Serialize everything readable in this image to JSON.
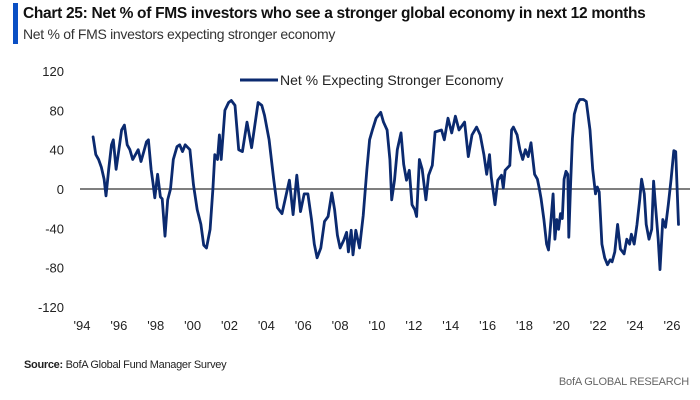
{
  "header": {
    "title": "Chart 25: Net % of FMS investors who see a stronger global economy in next 12 months",
    "subtitle": "Net % of FMS investors expecting stronger economy",
    "accent_color": "#0a4fc4"
  },
  "footer": {
    "source_label": "Source:",
    "source_text": "BofA Global Fund Manager Survey",
    "brand": "BofA GLOBAL RESEARCH"
  },
  "chart_data": {
    "type": "line",
    "title": "Chart 25: Net % of FMS investors who see a stronger global economy in next 12 months",
    "subtitle": "Net % of FMS investors expecting stronger economy",
    "xlabel": "",
    "ylabel": "",
    "xlim": [
      1994,
      2026
    ],
    "ylim": [
      -120,
      120
    ],
    "yticks": [
      120,
      80,
      40,
      0,
      -40,
      -80,
      -120
    ],
    "ytick_labels": [
      "120",
      "80",
      "40",
      "0",
      "-40",
      "-80",
      "-120"
    ],
    "xticks": [
      1994,
      1996,
      1998,
      2000,
      2002,
      2004,
      2006,
      2008,
      2010,
      2012,
      2014,
      2016,
      2018,
      2020,
      2022,
      2024,
      2026
    ],
    "xtick_labels": [
      "'94",
      "'96",
      "'98",
      "'00",
      "'02",
      "'04",
      "'06",
      "'08",
      "'10",
      "'12",
      "'14",
      "'16",
      "'18",
      "'20",
      "'22",
      "'24",
      "'26"
    ],
    "grid": false,
    "zero_line": true,
    "legend": {
      "position": "top-center",
      "entries": [
        "Net % Expecting Stronger Economy"
      ]
    },
    "series": [
      {
        "name": "Net % Expecting Stronger Economy",
        "color": "#0b2a6f",
        "points": [
          [
            1994.6,
            53
          ],
          [
            1994.75,
            35
          ],
          [
            1994.9,
            30
          ],
          [
            1995.05,
            22
          ],
          [
            1995.2,
            10
          ],
          [
            1995.3,
            -7
          ],
          [
            1995.45,
            20
          ],
          [
            1995.6,
            45
          ],
          [
            1995.7,
            50
          ],
          [
            1995.85,
            20
          ],
          [
            1996.0,
            40
          ],
          [
            1996.15,
            60
          ],
          [
            1996.3,
            65
          ],
          [
            1996.45,
            45
          ],
          [
            1996.6,
            40
          ],
          [
            1996.75,
            30
          ],
          [
            1996.9,
            35
          ],
          [
            1997.05,
            40
          ],
          [
            1997.2,
            28
          ],
          [
            1997.35,
            38
          ],
          [
            1997.5,
            48
          ],
          [
            1997.6,
            50
          ],
          [
            1997.75,
            20
          ],
          [
            1997.85,
            6
          ],
          [
            1997.95,
            -9
          ],
          [
            1998.1,
            15
          ],
          [
            1998.25,
            -8
          ],
          [
            1998.35,
            -10
          ],
          [
            1998.5,
            -48
          ],
          [
            1998.65,
            -11
          ],
          [
            1998.8,
            0
          ],
          [
            1998.95,
            30
          ],
          [
            1999.15,
            43
          ],
          [
            1999.3,
            45
          ],
          [
            1999.45,
            38
          ],
          [
            1999.6,
            45
          ],
          [
            1999.85,
            40
          ],
          [
            2000.05,
            4
          ],
          [
            2000.25,
            -21
          ],
          [
            2000.45,
            -36
          ],
          [
            2000.6,
            -57
          ],
          [
            2000.75,
            -60
          ],
          [
            2000.95,
            -41
          ],
          [
            2001.1,
            0
          ],
          [
            2001.2,
            35
          ],
          [
            2001.35,
            30
          ],
          [
            2001.45,
            55
          ],
          [
            2001.55,
            30
          ],
          [
            2001.75,
            80
          ],
          [
            2001.95,
            88
          ],
          [
            2002.1,
            90
          ],
          [
            2002.3,
            85
          ],
          [
            2002.5,
            40
          ],
          [
            2002.7,
            38
          ],
          [
            2002.95,
            68
          ],
          [
            2003.2,
            42
          ],
          [
            2003.55,
            88
          ],
          [
            2003.75,
            85
          ],
          [
            2003.9,
            75
          ],
          [
            2004.15,
            50
          ],
          [
            2004.4,
            9
          ],
          [
            2004.6,
            -19
          ],
          [
            2004.85,
            -25
          ],
          [
            2005.25,
            9
          ],
          [
            2005.45,
            -26
          ],
          [
            2005.65,
            14
          ],
          [
            2005.85,
            -23
          ],
          [
            2006.05,
            -5
          ],
          [
            2006.25,
            -5
          ],
          [
            2006.45,
            -31
          ],
          [
            2006.6,
            -56
          ],
          [
            2006.75,
            -70
          ],
          [
            2006.95,
            -60
          ],
          [
            2007.15,
            -33
          ],
          [
            2007.35,
            -28
          ],
          [
            2007.55,
            -4
          ],
          [
            2007.7,
            -21
          ],
          [
            2007.85,
            -47
          ],
          [
            2008.0,
            -60
          ],
          [
            2008.2,
            -52
          ],
          [
            2008.35,
            -44
          ],
          [
            2008.45,
            -64
          ],
          [
            2008.6,
            -42
          ],
          [
            2008.7,
            -67
          ],
          [
            2008.85,
            -42
          ],
          [
            2009.05,
            -60
          ],
          [
            2009.25,
            -27
          ],
          [
            2009.45,
            20
          ],
          [
            2009.6,
            50
          ],
          [
            2009.75,
            60
          ],
          [
            2009.95,
            72
          ],
          [
            2010.2,
            78
          ],
          [
            2010.35,
            68
          ],
          [
            2010.55,
            60
          ],
          [
            2010.7,
            30
          ],
          [
            2010.8,
            -11
          ],
          [
            2010.95,
            9
          ],
          [
            2011.1,
            40
          ],
          [
            2011.3,
            57
          ],
          [
            2011.45,
            25
          ],
          [
            2011.6,
            9
          ],
          [
            2011.75,
            19
          ],
          [
            2011.9,
            -16
          ],
          [
            2012.05,
            -21
          ],
          [
            2012.15,
            -28
          ],
          [
            2012.3,
            30
          ],
          [
            2012.45,
            20
          ],
          [
            2012.65,
            -11
          ],
          [
            2012.8,
            14
          ],
          [
            2013.0,
            24
          ],
          [
            2013.15,
            58
          ],
          [
            2013.5,
            60
          ],
          [
            2013.65,
            50
          ],
          [
            2013.85,
            72
          ],
          [
            2014.05,
            57
          ],
          [
            2014.25,
            74
          ],
          [
            2014.45,
            60
          ],
          [
            2014.75,
            68
          ],
          [
            2014.95,
            33
          ],
          [
            2015.15,
            55
          ],
          [
            2015.4,
            63
          ],
          [
            2015.6,
            55
          ],
          [
            2015.8,
            35
          ],
          [
            2015.95,
            15
          ],
          [
            2016.1,
            35
          ],
          [
            2016.2,
            12
          ],
          [
            2016.4,
            -16
          ],
          [
            2016.55,
            9
          ],
          [
            2016.75,
            14
          ],
          [
            2016.85,
            1
          ],
          [
            2016.95,
            19
          ],
          [
            2017.2,
            24
          ],
          [
            2017.3,
            60
          ],
          [
            2017.4,
            63
          ],
          [
            2017.6,
            55
          ],
          [
            2017.75,
            40
          ],
          [
            2017.9,
            30
          ],
          [
            2018.05,
            40
          ],
          [
            2018.2,
            33
          ],
          [
            2018.35,
            47
          ],
          [
            2018.55,
            15
          ],
          [
            2018.7,
            10
          ],
          [
            2018.8,
            1
          ],
          [
            2018.9,
            -10
          ],
          [
            2019.05,
            -31
          ],
          [
            2019.2,
            -56
          ],
          [
            2019.3,
            -62
          ],
          [
            2019.45,
            -29
          ],
          [
            2019.55,
            -5
          ],
          [
            2019.65,
            -51
          ],
          [
            2019.75,
            -31
          ],
          [
            2019.85,
            -41
          ],
          [
            2019.95,
            -25
          ],
          [
            2020.05,
            -30
          ],
          [
            2020.15,
            10
          ],
          [
            2020.25,
            18
          ],
          [
            2020.35,
            15
          ],
          [
            2020.4,
            -49
          ],
          [
            2020.5,
            5
          ],
          [
            2020.6,
            51
          ],
          [
            2020.7,
            76
          ],
          [
            2020.85,
            86
          ],
          [
            2021.0,
            91
          ],
          [
            2021.2,
            91
          ],
          [
            2021.35,
            89
          ],
          [
            2021.55,
            60
          ],
          [
            2021.7,
            20
          ],
          [
            2021.85,
            -5
          ],
          [
            2021.95,
            2
          ],
          [
            2022.05,
            -3
          ],
          [
            2022.2,
            -56
          ],
          [
            2022.35,
            -70
          ],
          [
            2022.5,
            -77
          ],
          [
            2022.65,
            -72
          ],
          [
            2022.75,
            -74
          ],
          [
            2022.9,
            -64
          ],
          [
            2023.05,
            -36
          ],
          [
            2023.2,
            -61
          ],
          [
            2023.4,
            -66
          ],
          [
            2023.55,
            -51
          ],
          [
            2023.7,
            -56
          ],
          [
            2023.8,
            -46
          ],
          [
            2023.95,
            -56
          ],
          [
            2024.1,
            -36
          ],
          [
            2024.25,
            -11
          ],
          [
            2024.35,
            10
          ],
          [
            2024.5,
            -5
          ],
          [
            2024.6,
            -36
          ],
          [
            2024.75,
            -51
          ],
          [
            2024.9,
            -41
          ],
          [
            2025.0,
            8
          ],
          [
            2025.1,
            -16
          ],
          [
            2025.25,
            -51
          ],
          [
            2025.35,
            -82
          ],
          [
            2025.5,
            -31
          ],
          [
            2025.65,
            -39
          ],
          [
            2025.8,
            -16
          ],
          [
            2025.95,
            10
          ],
          [
            2026.1,
            39
          ],
          [
            2026.2,
            38
          ],
          [
            2026.35,
            -36
          ]
        ]
      }
    ]
  }
}
